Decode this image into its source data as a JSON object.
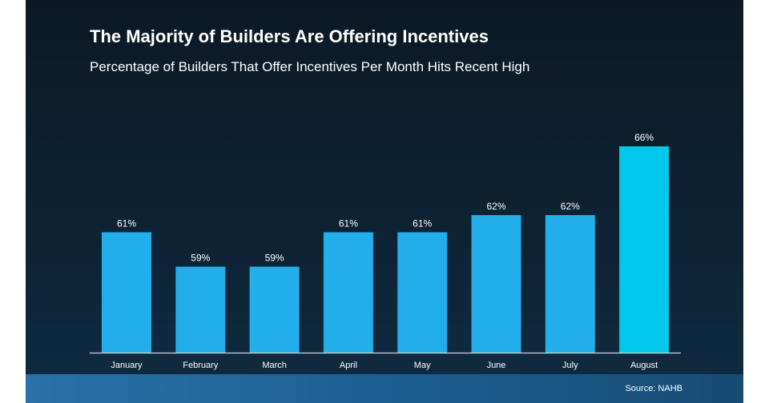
{
  "chart_data": {
    "type": "bar",
    "title": "The Majority of Builders Are Offering Incentives",
    "subtitle": "Percentage of Builders That Offer Incentives Per Month Hits Recent High",
    "categories": [
      "January",
      "February",
      "March",
      "April",
      "May",
      "June",
      "July",
      "August"
    ],
    "values": [
      61,
      59,
      59,
      61,
      61,
      62,
      62,
      66
    ],
    "value_labels": [
      "61%",
      "59%",
      "59%",
      "61%",
      "61%",
      "62%",
      "62%",
      "66%"
    ],
    "xlabel": "",
    "ylabel": "",
    "ylim": [
      54,
      68
    ],
    "grid": false,
    "colors": {
      "default": "#22aeea",
      "highlight": "#00c8ea",
      "axis": "#cfd6dc"
    },
    "highlight_index": 7,
    "source": "Source: NAHB"
  }
}
